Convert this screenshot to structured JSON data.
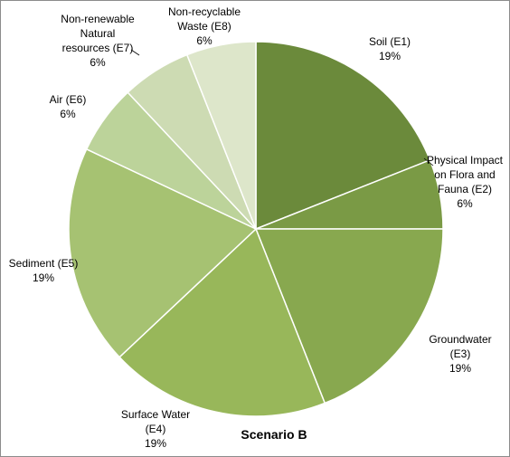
{
  "chart_data": {
    "type": "pie",
    "title": "Scenario B",
    "slices": [
      {
        "label": "Soil (E1)",
        "lines": [
          "Soil (E1)"
        ],
        "value": 19,
        "value_label": "19%",
        "color": "#6b8a3b"
      },
      {
        "label": "Physical Impact on Flora and Fauna (E2)",
        "lines": [
          "Physical Impact",
          "on Flora and",
          "Fauna (E2)"
        ],
        "value": 6,
        "value_label": "6%",
        "color": "#7a9a45"
      },
      {
        "label": "Groundwater (E3)",
        "lines": [
          "Groundwater",
          "(E3)"
        ],
        "value": 19,
        "value_label": "19%",
        "color": "#88a84f"
      },
      {
        "label": "Surface Water (E4)",
        "lines": [
          "Surface Water",
          "(E4)"
        ],
        "value": 19,
        "value_label": "19%",
        "color": "#98b75a"
      },
      {
        "label": "Sediment (E5)",
        "lines": [
          "Sediment (E5)"
        ],
        "value": 19,
        "value_label": "19%",
        "color": "#a6c272"
      },
      {
        "label": "Air (E6)",
        "lines": [
          "Air (E6)"
        ],
        "value": 6,
        "value_label": "6%",
        "color": "#bcd39a"
      },
      {
        "label": "Non-renewable Natural resources (E7)",
        "lines": [
          "Non-renewable",
          "Natural",
          "resources (E7)"
        ],
        "value": 6,
        "value_label": "6%",
        "color": "#cddbb3"
      },
      {
        "label": "Non-recyclable Waste (E8)",
        "lines": [
          "Non-recyclable",
          "Waste (E8)"
        ],
        "value": 6,
        "value_label": "6%",
        "color": "#dde6ca"
      }
    ]
  }
}
